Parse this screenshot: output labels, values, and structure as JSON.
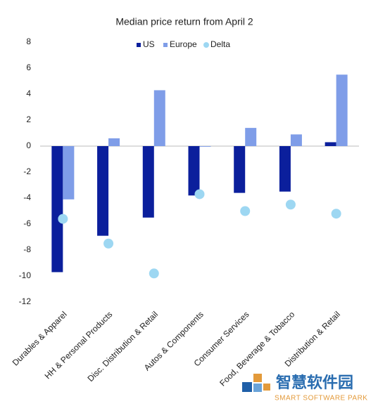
{
  "chart_data": {
    "type": "bar",
    "title": "Median price return from April 2",
    "categories": [
      "Durables & Apparel",
      "HH & Personal Products",
      "Disc. Distribution & Retail",
      "Autos & Components",
      "Consumer Services",
      "Food, Beverage & Tobacco",
      "Distribution & Retail"
    ],
    "series": [
      {
        "name": "US",
        "color": "#0b1f9c",
        "kind": "bar",
        "values": [
          -9.7,
          -6.9,
          -5.5,
          -3.8,
          -3.6,
          -3.5,
          0.3
        ]
      },
      {
        "name": "Europe",
        "color": "#7f9de8",
        "kind": "bar",
        "values": [
          -4.1,
          0.6,
          4.3,
          -0.05,
          1.4,
          0.9,
          5.5
        ]
      },
      {
        "name": "Delta",
        "color": "#9dd7f2",
        "kind": "dot",
        "values": [
          -5.6,
          -7.5,
          -9.8,
          -3.7,
          -5.0,
          -4.5,
          -5.2
        ]
      }
    ],
    "ylim": [
      -12,
      8
    ],
    "yticks": [
      -12,
      -10,
      -8,
      -6,
      -4,
      -2,
      0,
      2,
      4,
      6,
      8
    ],
    "grid": false,
    "legend": "top"
  },
  "watermark": {
    "title": "智慧软件园",
    "subtitle": "SMART SOFTWARE PARK"
  }
}
